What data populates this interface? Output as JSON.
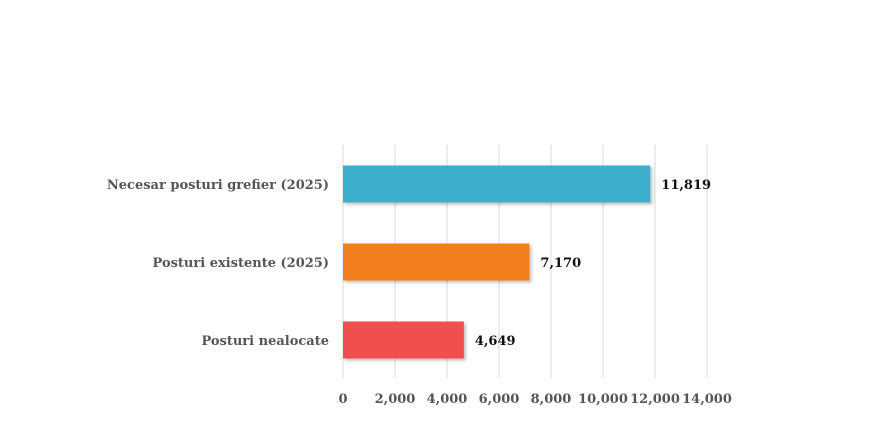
{
  "chart_data": {
    "type": "bar",
    "orientation": "horizontal",
    "categories": [
      "Necesar posturi grefier (2025)",
      "Posturi existente (2025)",
      "Posturi nealocate"
    ],
    "values": [
      11819,
      7170,
      4649
    ],
    "value_labels": [
      "11,819",
      "7,170",
      "4,649"
    ],
    "bar_colors": [
      "#3aafc9",
      "#f07f1e",
      "#ef5050"
    ],
    "xlim": [
      0,
      14000
    ],
    "x_ticks": [
      0,
      2000,
      4000,
      6000,
      8000,
      10000,
      12000,
      14000
    ],
    "x_tick_labels": [
      "0",
      "2,000",
      "4,000",
      "6,000",
      "8,000",
      "10,000",
      "12,000",
      "14,000"
    ],
    "grid": "vertical",
    "legend": "none",
    "title": "",
    "xlabel": "",
    "ylabel": ""
  }
}
